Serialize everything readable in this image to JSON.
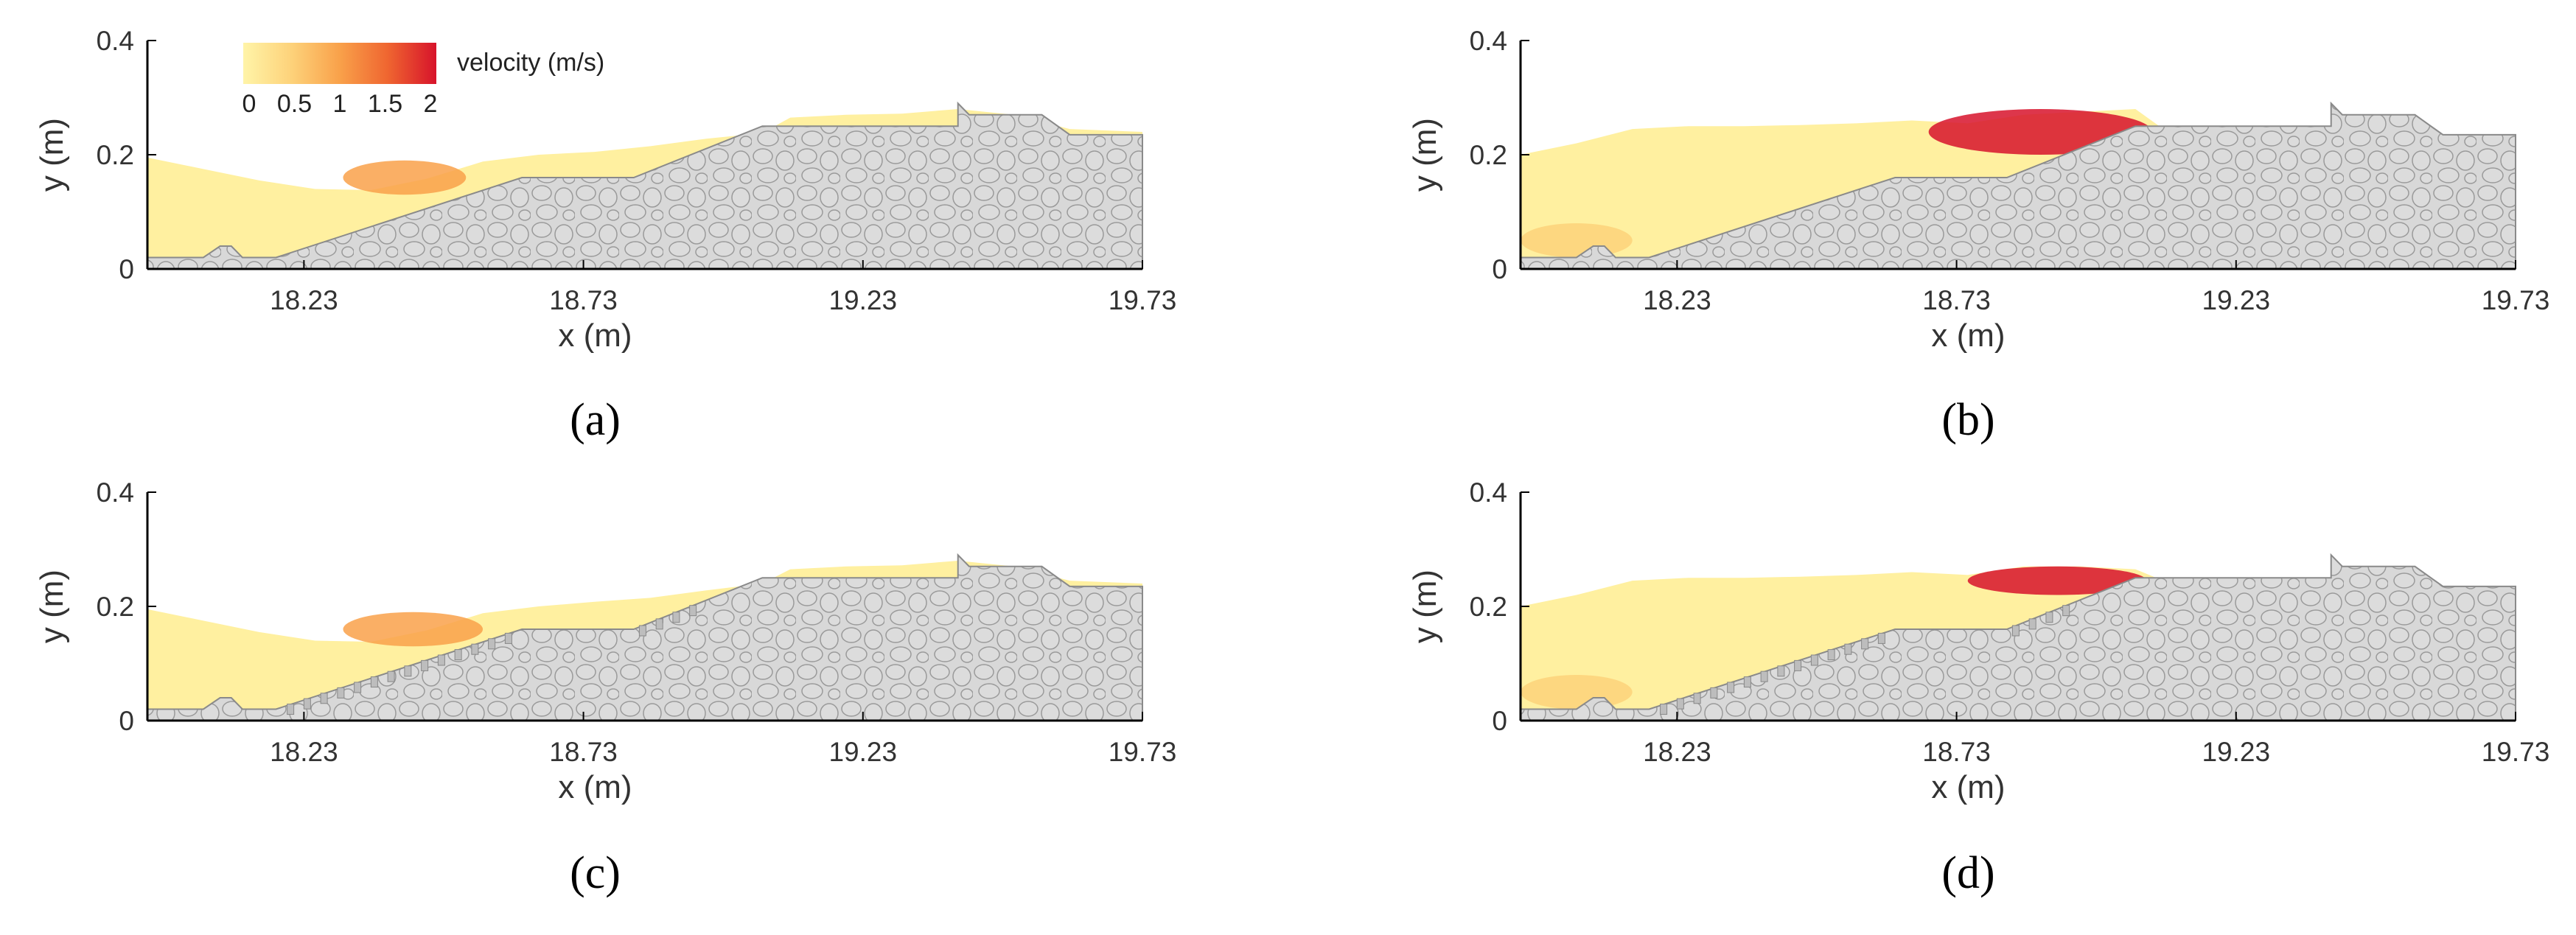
{
  "figure": {
    "legend": {
      "title": "velocity (m/s)",
      "ticks": [
        "0",
        "0.5",
        "1",
        "1.5",
        "2"
      ],
      "range": [
        0,
        2
      ],
      "colors": [
        "#fff4a8",
        "#fdd27a",
        "#f9a14a",
        "#ef6530",
        "#d7132b"
      ]
    },
    "colors": {
      "rock_fill": "#d8d8d8",
      "rock_stroke": "#9a9a9a",
      "grid_fill": "#d0d0d0",
      "axis": "#000000"
    }
  },
  "chart_data": [
    {
      "type": "heatmap",
      "panel": "a",
      "caption": "(a)",
      "xlabel": "x (m)",
      "ylabel": "y (m)",
      "xlim": [
        17.95,
        19.73
      ],
      "ylim": [
        0,
        0.4
      ],
      "xticks": [
        "18.23",
        "18.73",
        "19.23",
        "19.73"
      ],
      "yticks": [
        "0",
        "0.2",
        "0.4"
      ],
      "surface_type": "smooth",
      "water_surface": {
        "x": [
          17.95,
          18.05,
          18.15,
          18.25,
          18.35,
          18.45,
          18.55,
          18.65,
          18.75,
          18.85,
          18.95,
          19.05,
          19.1,
          19.2,
          19.3,
          19.4,
          19.5,
          19.6,
          19.73
        ],
        "y": [
          0.195,
          0.175,
          0.155,
          0.14,
          0.138,
          0.158,
          0.188,
          0.2,
          0.205,
          0.215,
          0.228,
          0.238,
          0.265,
          0.27,
          0.272,
          0.28,
          0.27,
          0.245,
          0.24
        ]
      },
      "high_velocity_zones": [
        {
          "x": [
            18.3,
            18.52
          ],
          "y": [
            0.13,
            0.19
          ],
          "velocity": 1.0
        }
      ]
    },
    {
      "type": "heatmap",
      "panel": "b",
      "caption": "(b)",
      "xlabel": "x (m)",
      "ylabel": "y (m)",
      "xlim": [
        17.95,
        19.73
      ],
      "ylim": [
        0,
        0.4
      ],
      "xticks": [
        "18.23",
        "18.73",
        "19.23",
        "19.73"
      ],
      "yticks": [
        "0",
        "0.2",
        "0.4"
      ],
      "surface_type": "smooth",
      "water_surface": {
        "x": [
          17.95,
          18.05,
          18.15,
          18.25,
          18.35,
          18.45,
          18.55,
          18.65,
          18.75,
          18.85,
          18.95,
          19.05,
          19.1,
          19.2,
          19.3,
          19.4
        ],
        "y": [
          0.2,
          0.22,
          0.245,
          0.25,
          0.25,
          0.252,
          0.255,
          0.26,
          0.255,
          0.27,
          0.275,
          0.28,
          0.245,
          0.245,
          0.245,
          0.245
        ]
      },
      "high_velocity_zones": [
        {
          "x": [
            18.68,
            19.08
          ],
          "y": [
            0.2,
            0.28
          ],
          "velocity": 1.8
        },
        {
          "x": [
            17.95,
            18.15
          ],
          "y": [
            0.02,
            0.08
          ],
          "velocity": 0.5
        }
      ]
    },
    {
      "type": "heatmap",
      "panel": "c",
      "caption": "(c)",
      "xlabel": "x (m)",
      "ylabel": "y (m)",
      "xlim": [
        17.95,
        19.73
      ],
      "ylim": [
        0,
        0.4
      ],
      "xticks": [
        "18.23",
        "18.73",
        "19.23",
        "19.73"
      ],
      "yticks": [
        "0",
        "0.2",
        "0.4"
      ],
      "surface_type": "stepped",
      "water_surface": {
        "x": [
          17.95,
          18.05,
          18.15,
          18.25,
          18.35,
          18.45,
          18.55,
          18.65,
          18.75,
          18.85,
          18.95,
          19.05,
          19.1,
          19.2,
          19.3,
          19.4,
          19.5,
          19.6,
          19.73
        ],
        "y": [
          0.195,
          0.175,
          0.155,
          0.14,
          0.138,
          0.158,
          0.188,
          0.2,
          0.208,
          0.215,
          0.228,
          0.24,
          0.265,
          0.27,
          0.272,
          0.28,
          0.27,
          0.245,
          0.24
        ]
      },
      "high_velocity_zones": [
        {
          "x": [
            18.3,
            18.55
          ],
          "y": [
            0.13,
            0.19
          ],
          "velocity": 1.0
        }
      ]
    },
    {
      "type": "heatmap",
      "panel": "d",
      "caption": "(d)",
      "xlabel": "x (m)",
      "ylabel": "y (m)",
      "xlim": [
        17.95,
        19.73
      ],
      "ylim": [
        0,
        0.4
      ],
      "xticks": [
        "18.23",
        "18.73",
        "19.23",
        "19.73"
      ],
      "yticks": [
        "0",
        "0.2",
        "0.4"
      ],
      "surface_type": "stepped",
      "water_surface": {
        "x": [
          17.95,
          18.05,
          18.15,
          18.25,
          18.35,
          18.45,
          18.55,
          18.65,
          18.75,
          18.85,
          18.95,
          19.05,
          19.1,
          19.2,
          19.3,
          19.4
        ],
        "y": [
          0.2,
          0.22,
          0.245,
          0.25,
          0.25,
          0.252,
          0.255,
          0.26,
          0.255,
          0.27,
          0.27,
          0.265,
          0.245,
          0.245,
          0.245,
          0.245
        ]
      },
      "high_velocity_zones": [
        {
          "x": [
            18.75,
            19.07
          ],
          "y": [
            0.22,
            0.27
          ],
          "velocity": 1.9
        },
        {
          "x": [
            17.95,
            18.15
          ],
          "y": [
            0.02,
            0.08
          ],
          "velocity": 0.5
        }
      ]
    }
  ]
}
